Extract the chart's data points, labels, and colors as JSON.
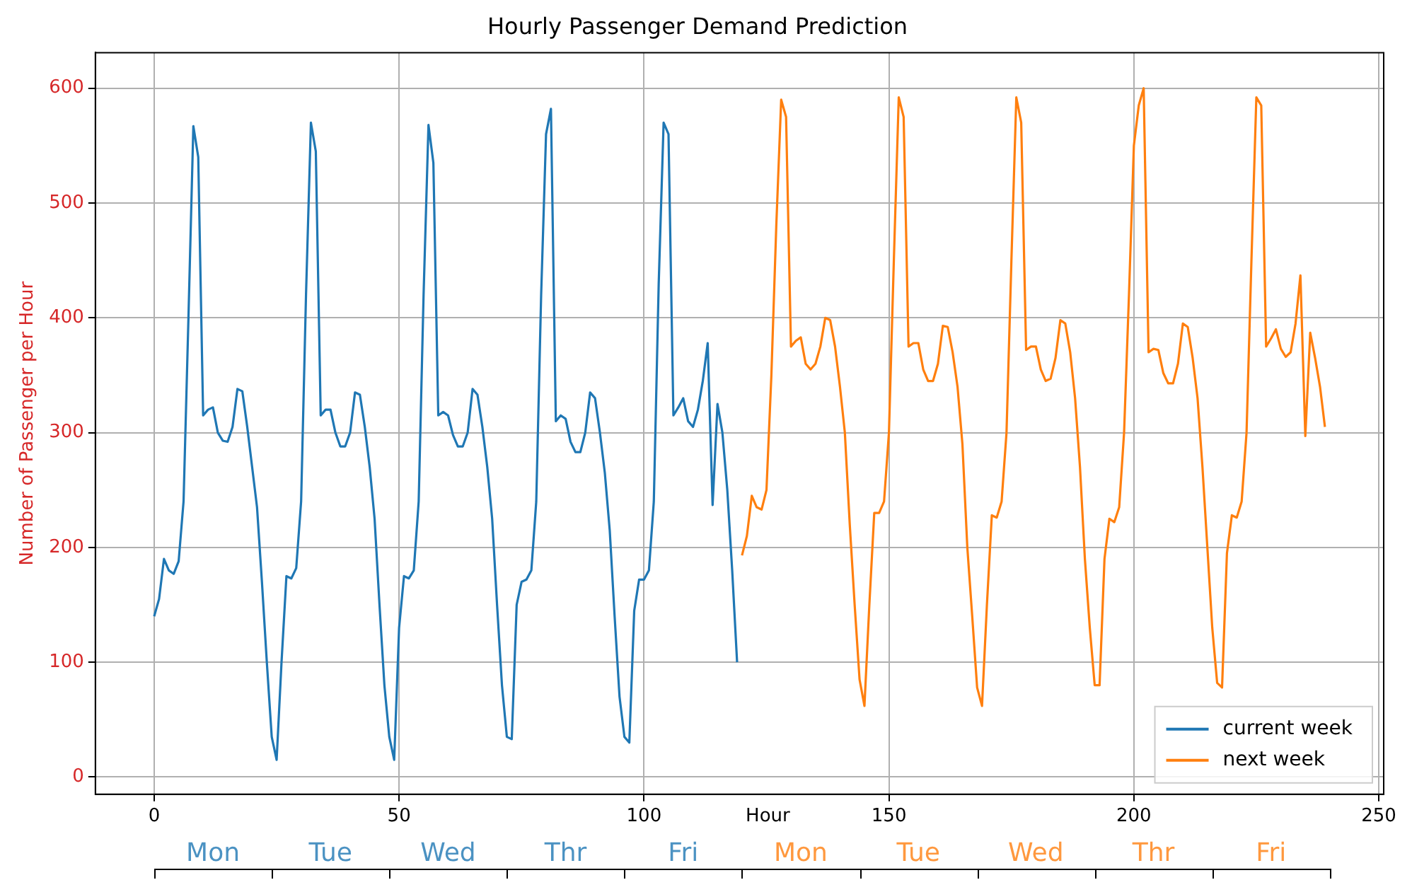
{
  "chart_data": {
    "type": "line",
    "title": "Hourly Passenger Demand Prediction",
    "xlabel": "Hour",
    "ylabel": "Number of Passenger per Hour",
    "xlim": [
      -12,
      251
    ],
    "ylim": [
      -15,
      631
    ],
    "xticks": [
      0,
      50,
      100,
      150,
      200,
      250
    ],
    "yticks": [
      0,
      100,
      200,
      300,
      400,
      500,
      600
    ],
    "grid": true,
    "legend": "bottom right",
    "annotations": [
      "Mon",
      "Tue",
      "Wed",
      "Thr",
      "Fri",
      "Mon",
      "Tue",
      "Wed",
      "Thr",
      "Fri"
    ],
    "series": [
      {
        "name": "current week",
        "color": "#1f77b4",
        "x": [
          0,
          1,
          2,
          3,
          4,
          5,
          6,
          7,
          8,
          9,
          10,
          11,
          12,
          13,
          14,
          15,
          16,
          17,
          18,
          19,
          20,
          21,
          22,
          23,
          24,
          25,
          26,
          27,
          28,
          29,
          30,
          31,
          32,
          33,
          34,
          35,
          36,
          37,
          38,
          39,
          40,
          41,
          42,
          43,
          44,
          45,
          46,
          47,
          48,
          49,
          50,
          51,
          52,
          53,
          54,
          55,
          56,
          57,
          58,
          59,
          60,
          61,
          62,
          63,
          64,
          65,
          66,
          67,
          68,
          69,
          70,
          71,
          72,
          73,
          74,
          75,
          76,
          77,
          78,
          79,
          80,
          81,
          82,
          83,
          84,
          85,
          86,
          87,
          88,
          89,
          90,
          91,
          92,
          93,
          94,
          95,
          96,
          97,
          98,
          99,
          100,
          101,
          102,
          103,
          104,
          105,
          106,
          107,
          108,
          109,
          110,
          111,
          112,
          113,
          114,
          115,
          116,
          117,
          118,
          119
        ],
        "values": [
          140,
          155,
          190,
          180,
          177,
          188,
          240,
          400,
          567,
          540,
          315,
          320,
          322,
          300,
          293,
          292,
          305,
          338,
          336,
          305,
          270,
          235,
          170,
          100,
          35,
          15,
          100,
          175,
          173,
          182,
          240,
          420,
          570,
          545,
          315,
          320,
          320,
          300,
          288,
          288,
          300,
          335,
          333,
          305,
          270,
          225,
          150,
          80,
          35,
          15,
          130,
          175,
          173,
          180,
          240,
          420,
          568,
          535,
          315,
          318,
          315,
          298,
          288,
          288,
          300,
          338,
          333,
          305,
          270,
          225,
          150,
          80,
          35,
          33,
          150,
          170,
          172,
          180,
          240,
          420,
          560,
          582,
          310,
          315,
          312,
          292,
          283,
          283,
          300,
          335,
          330,
          300,
          265,
          215,
          140,
          70,
          35,
          30,
          145,
          172,
          172,
          180,
          240,
          430,
          570,
          560,
          315,
          322,
          330,
          310,
          305,
          320,
          345,
          378,
          237,
          325,
          300,
          250,
          180,
          100
        ]
      },
      {
        "name": "next week",
        "color": "#ff7f0e",
        "x": [
          120,
          121,
          122,
          123,
          124,
          125,
          126,
          127,
          128,
          129,
          130,
          131,
          132,
          133,
          134,
          135,
          136,
          137,
          138,
          139,
          140,
          141,
          142,
          143,
          144,
          145,
          146,
          147,
          148,
          149,
          150,
          151,
          152,
          153,
          154,
          155,
          156,
          157,
          158,
          159,
          160,
          161,
          162,
          163,
          164,
          165,
          166,
          167,
          168,
          169,
          170,
          171,
          172,
          173,
          174,
          175,
          176,
          177,
          178,
          179,
          180,
          181,
          182,
          183,
          184,
          185,
          186,
          187,
          188,
          189,
          190,
          191,
          192,
          193,
          194,
          195,
          196,
          197,
          198,
          199,
          200,
          201,
          202,
          203,
          204,
          205,
          206,
          207,
          208,
          209,
          210,
          211,
          212,
          213,
          214,
          215,
          216,
          217,
          218,
          219,
          220,
          221,
          222,
          223,
          224,
          225,
          226,
          227,
          228,
          229,
          230,
          231,
          232,
          233,
          234,
          235,
          236,
          237,
          238,
          239
        ],
        "values": [
          193,
          210,
          245,
          235,
          233,
          250,
          350,
          480,
          590,
          575,
          375,
          380,
          383,
          360,
          355,
          360,
          375,
          400,
          398,
          375,
          340,
          300,
          220,
          150,
          85,
          62,
          150,
          230,
          230,
          240,
          300,
          450,
          592,
          575,
          375,
          378,
          378,
          355,
          345,
          345,
          360,
          393,
          392,
          370,
          340,
          290,
          200,
          140,
          78,
          62,
          150,
          228,
          226,
          240,
          300,
          450,
          592,
          570,
          372,
          375,
          375,
          355,
          345,
          347,
          365,
          398,
          395,
          370,
          330,
          270,
          190,
          130,
          80,
          80,
          190,
          225,
          222,
          235,
          300,
          420,
          550,
          585,
          600,
          370,
          373,
          372,
          352,
          343,
          343,
          360,
          395,
          392,
          365,
          330,
          270,
          200,
          130,
          82,
          78,
          195,
          228,
          226,
          240,
          300,
          450,
          592,
          585,
          375,
          382,
          390,
          373,
          366,
          370,
          395,
          437,
          297,
          387,
          365,
          340,
          305
        ]
      }
    ]
  }
}
